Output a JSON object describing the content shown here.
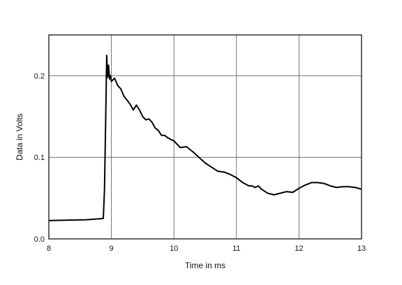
{
  "chart_data": {
    "type": "line",
    "title": "",
    "xlabel": "Time in ms",
    "ylabel": "Data in Volts",
    "xlim": [
      8,
      13
    ],
    "ylim": [
      0.0,
      0.25
    ],
    "xticks": [
      8,
      9,
      10,
      11,
      12,
      13
    ],
    "xtick_labels": [
      "8",
      "9",
      "10",
      "11",
      "12",
      "13"
    ],
    "yticks": [
      0.0,
      0.1,
      0.2
    ],
    "ytick_labels": [
      "0.0",
      "0.1",
      "0.2"
    ],
    "grid": true,
    "legend": "none",
    "line_color": "#000000",
    "series": [
      {
        "x": [
          8.0,
          8.3,
          8.6,
          8.87,
          8.89,
          8.91,
          8.925,
          8.94,
          8.955,
          8.97,
          8.985,
          9.0,
          9.05,
          9.1,
          9.15,
          9.2,
          9.25,
          9.3,
          9.35,
          9.4,
          9.45,
          9.5,
          9.55,
          9.6,
          9.65,
          9.7,
          9.75,
          9.8,
          9.85,
          9.9,
          9.95,
          10.0,
          10.1,
          10.2,
          10.3,
          10.4,
          10.5,
          10.6,
          10.7,
          10.8,
          10.9,
          11.0,
          11.1,
          11.2,
          11.25,
          11.3,
          11.35,
          11.4,
          11.5,
          11.6,
          11.7,
          11.8,
          11.9,
          12.0,
          12.1,
          12.2,
          12.3,
          12.4,
          12.5,
          12.6,
          12.7,
          12.8,
          12.9,
          13.0
        ],
        "y": [
          0.0225,
          0.023,
          0.0235,
          0.025,
          0.06,
          0.15,
          0.225,
          0.198,
          0.213,
          0.196,
          0.2,
          0.193,
          0.197,
          0.188,
          0.184,
          0.175,
          0.17,
          0.165,
          0.158,
          0.164,
          0.158,
          0.15,
          0.146,
          0.147,
          0.143,
          0.136,
          0.133,
          0.127,
          0.127,
          0.124,
          0.122,
          0.12,
          0.112,
          0.113,
          0.107,
          0.1,
          0.093,
          0.088,
          0.083,
          0.082,
          0.079,
          0.075,
          0.069,
          0.065,
          0.065,
          0.063,
          0.065,
          0.061,
          0.056,
          0.054,
          0.056,
          0.058,
          0.057,
          0.062,
          0.066,
          0.069,
          0.069,
          0.068,
          0.065,
          0.063,
          0.064,
          0.064,
          0.063,
          0.061
        ]
      }
    ]
  }
}
